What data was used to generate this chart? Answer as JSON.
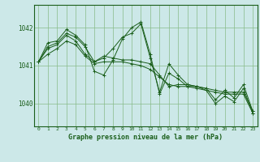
{
  "xlabel": "Graphe pression niveau de la mer (hPa)",
  "background_color": "#cce8e8",
  "grid_color": "#88bb88",
  "line_color": "#1a5e1a",
  "spine_color": "#1a5e1a",
  "x_ticks": [
    0,
    1,
    2,
    3,
    4,
    5,
    6,
    7,
    8,
    9,
    10,
    11,
    12,
    13,
    14,
    15,
    16,
    17,
    18,
    19,
    20,
    21,
    22,
    23
  ],
  "ylim": [
    1039.4,
    1042.6
  ],
  "yticks": [
    1040.0,
    1041.0,
    1042.0
  ],
  "series": [
    [
      1041.1,
      1041.5,
      1041.6,
      1041.85,
      1041.75,
      1041.5,
      1041.1,
      1041.2,
      1041.45,
      1041.75,
      1041.85,
      1042.1,
      1041.2,
      1040.3,
      1041.05,
      1040.75,
      1040.5,
      1040.45,
      1040.4,
      1040.1,
      1040.35,
      1040.15,
      1040.5,
      1039.8
    ],
    [
      1041.1,
      1041.45,
      1041.55,
      1041.8,
      1041.65,
      1041.3,
      1041.1,
      1041.25,
      1041.2,
      1041.15,
      1041.15,
      1041.1,
      1041.05,
      1040.75,
      1040.45,
      1040.5,
      1040.5,
      1040.45,
      1040.4,
      1040.35,
      1040.3,
      1040.3,
      1040.3,
      1039.8
    ],
    [
      1041.1,
      1041.3,
      1041.45,
      1041.65,
      1041.55,
      1041.25,
      1041.05,
      1041.1,
      1041.1,
      1041.1,
      1041.05,
      1041.0,
      1040.9,
      1040.7,
      1040.5,
      1040.45,
      1040.45,
      1040.4,
      1040.35,
      1040.3,
      1040.25,
      1040.25,
      1040.25,
      1039.75
    ],
    [
      1041.1,
      1041.6,
      1041.65,
      1041.95,
      1041.8,
      1041.55,
      1040.85,
      1040.75,
      1041.15,
      1041.7,
      1042.0,
      1042.15,
      1041.3,
      1040.25,
      1040.8,
      1040.65,
      1040.45,
      1040.45,
      1040.35,
      1040.0,
      1040.2,
      1040.05,
      1040.4,
      1039.75
    ]
  ]
}
